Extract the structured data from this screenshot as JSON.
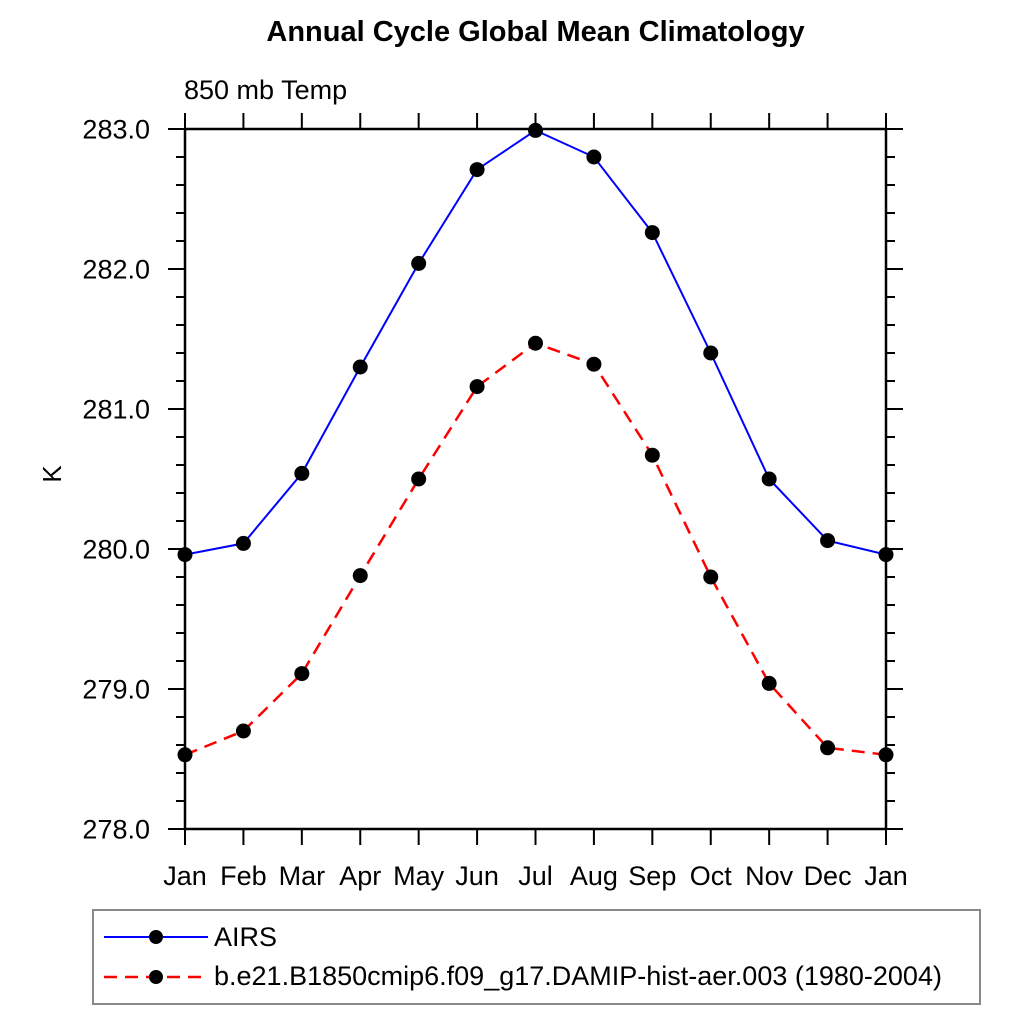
{
  "chart_data": {
    "type": "line",
    "title": "Annual Cycle Global Mean Climatology",
    "subtitle": "850 mb Temp",
    "xlabel": "",
    "ylabel": "K",
    "categories": [
      "Jan",
      "Feb",
      "Mar",
      "Apr",
      "May",
      "Jun",
      "Jul",
      "Aug",
      "Sep",
      "Oct",
      "Nov",
      "Dec",
      "Jan"
    ],
    "series": [
      {
        "name": "AIRS",
        "color": "#0000ff",
        "line_style": "solid",
        "marker": "filled-circle",
        "marker_color": "#000000",
        "values": [
          279.96,
          280.04,
          280.54,
          281.3,
          282.04,
          282.71,
          282.99,
          282.8,
          282.26,
          281.4,
          280.5,
          280.06,
          279.96
        ]
      },
      {
        "name": "b.e21.B1850cmip6.f09_g17.DAMIP-hist-aer.003 (1980-2004)",
        "color": "#ff0000",
        "line_style": "dashed",
        "marker": "filled-circle",
        "marker_color": "#000000",
        "values": [
          278.53,
          278.7,
          279.11,
          279.81,
          280.5,
          281.16,
          281.47,
          281.32,
          280.67,
          279.8,
          279.04,
          278.58,
          278.53
        ]
      }
    ],
    "ylim": [
      278.0,
      283.0
    ],
    "y_major_step": 1.0,
    "y_minor_step": 0.2,
    "y_tick_decimals": 1,
    "grid": false,
    "legend_position": "bottom",
    "axis_color": "#000000",
    "background_color": "#ffffff"
  }
}
